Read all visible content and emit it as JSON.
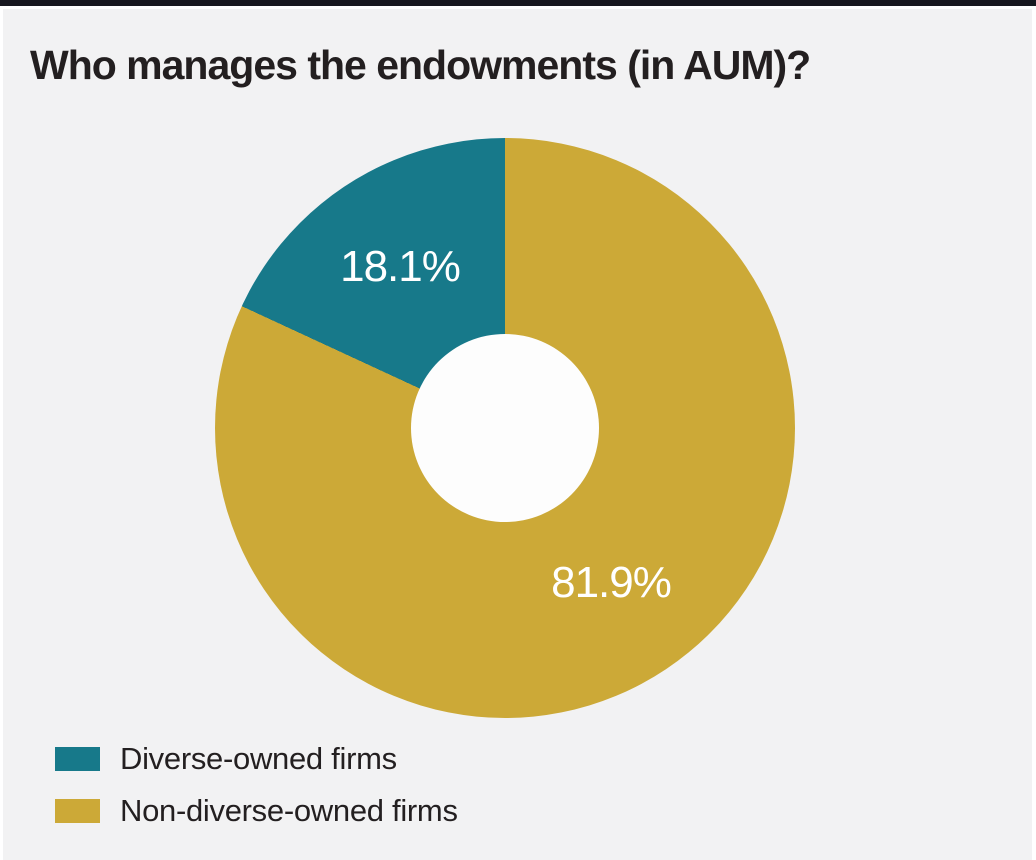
{
  "window": {
    "top_bar_color": "#17171f",
    "background": "#f2f2f3"
  },
  "chart_data": {
    "type": "pie",
    "subtype": "donut",
    "title": "Who manages the endowments (in AUM)?",
    "categories": [
      "Diverse-owned firms",
      "Non-diverse-owned firms"
    ],
    "values": [
      18.1,
      81.9
    ],
    "unit": "%",
    "data_labels": [
      "18.1%",
      "81.9%"
    ],
    "colors": [
      "#17798a",
      "#cca937"
    ],
    "label_color": "#ffffff",
    "hole_color": "#fdfdfd",
    "orientation": "large slice starts at 12 o'clock going clockwise; small slice occupies upper-left ending at 12 o'clock",
    "legend_position": "bottom-left",
    "grid": false
  },
  "legend": {
    "items": [
      {
        "label": "Diverse-owned firms",
        "color": "#17798a",
        "swatch_style": "background:#17798a"
      },
      {
        "label": "Non-diverse-owned firms",
        "color": "#cca937",
        "swatch_style": "background:#cca937"
      }
    ]
  }
}
